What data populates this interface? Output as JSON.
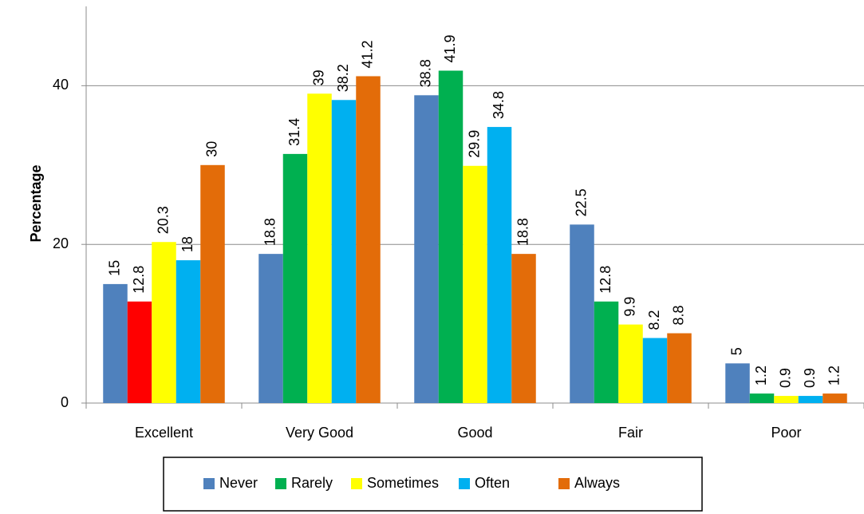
{
  "chart_data": {
    "type": "bar",
    "y_label": "Percentage",
    "categories": [
      "Excellent",
      "Very Good",
      "Good",
      "Fair",
      "Poor"
    ],
    "series": [
      {
        "name": "Never",
        "color": "#4f81bd",
        "values": [
          15,
          18.8,
          38.8,
          22.5,
          5
        ]
      },
      {
        "name": "Rarely",
        "color": "#00b050",
        "colors": [
          "#ff0000",
          "#00b050",
          "#00b050",
          "#00b050",
          "#00b050"
        ],
        "values": [
          12.8,
          31.4,
          41.9,
          12.8,
          1.2
        ]
      },
      {
        "name": "Sometimes",
        "color": "#ffff00",
        "values": [
          20.3,
          39,
          29.9,
          9.9,
          0.9
        ]
      },
      {
        "name": "Often",
        "color": "#00b0f0",
        "values": [
          18,
          38.2,
          34.8,
          8.2,
          0.9
        ]
      },
      {
        "name": "Always",
        "color": "#e36c09",
        "values": [
          30,
          41.2,
          18.8,
          8.8,
          1.2
        ]
      }
    ],
    "ylim": [
      0,
      50
    ],
    "yticks": [
      0,
      20,
      40
    ],
    "grid": true,
    "legend": "bottom"
  }
}
